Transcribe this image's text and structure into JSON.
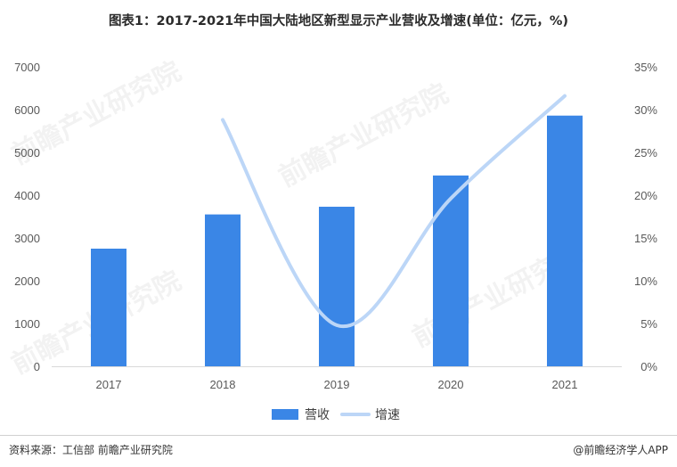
{
  "title": "图表1：2017-2021年中国大陆地区新型显示产业营收及增速(单位：亿元，%)",
  "source": "资料来源：工信部 前瞻产业研究院",
  "brand": "@前瞻经济学人APP",
  "watermark": "前瞻产业研究院",
  "colors": {
    "bar": "#3a86e6",
    "line": "#bcd6f7",
    "axis_text": "#595959",
    "baseline": "#d9d9d9"
  },
  "chart_data": {
    "type": "bar",
    "categories": [
      "2017",
      "2018",
      "2019",
      "2020",
      "2021"
    ],
    "series": [
      {
        "name": "营收",
        "type": "bar",
        "axis": "left",
        "values": [
          2750,
          3550,
          3730,
          4460,
          5860
        ]
      },
      {
        "name": "增速",
        "type": "line",
        "axis": "right",
        "values": [
          null,
          28.8,
          4.8,
          19.6,
          31.6
        ]
      }
    ],
    "y_left": {
      "min": 0,
      "max": 7000,
      "ticks": [
        "0",
        "1000",
        "2000",
        "3000",
        "4000",
        "5000",
        "6000",
        "7000"
      ]
    },
    "y_right": {
      "min": 0,
      "max": 35,
      "ticks": [
        "0%",
        "5%",
        "10%",
        "15%",
        "20%",
        "25%",
        "30%",
        "35%"
      ]
    },
    "grid": false,
    "legend": "bottom-center"
  }
}
